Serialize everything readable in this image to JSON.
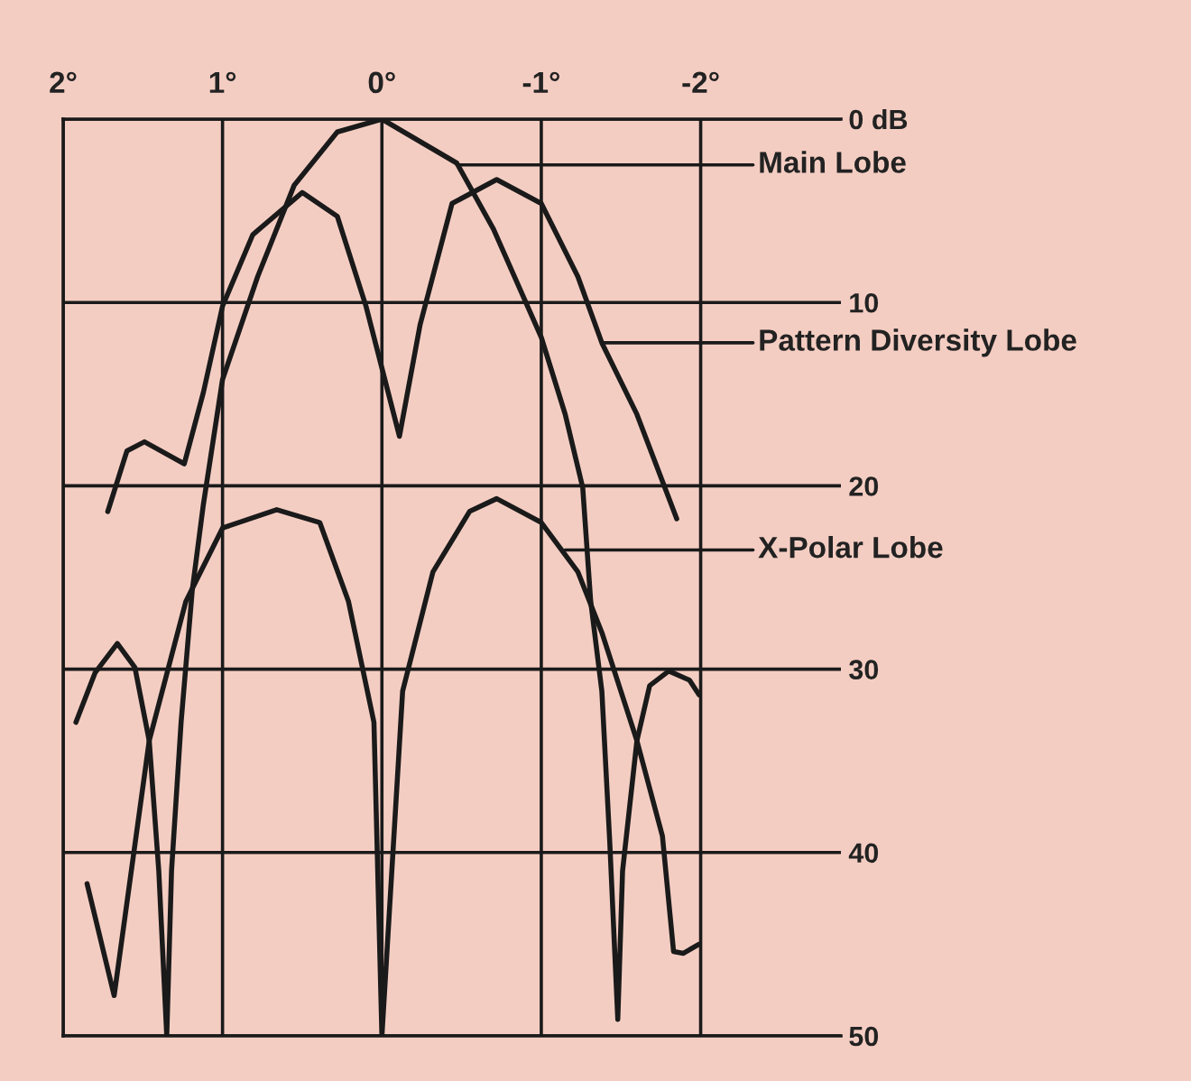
{
  "chart_data": {
    "type": "line",
    "xlim": [
      2,
      -2.88
    ],
    "xticks": [
      {
        "value": 2,
        "label": "2°"
      },
      {
        "value": 1,
        "label": "1°"
      },
      {
        "value": 0,
        "label": "0°"
      },
      {
        "value": -1,
        "label": "-1°"
      },
      {
        "value": -2,
        "label": "-2°"
      }
    ],
    "ylim": [
      50,
      0
    ],
    "yticks": [
      {
        "value": 0,
        "label": "0 dB"
      },
      10,
      20,
      30,
      40,
      50
    ],
    "grid": true,
    "line_style": "solid",
    "series": [
      {
        "color": "#1a1a1a",
        "x": [
          1.92,
          1.8,
          1.66,
          1.55,
          1.46,
          1.4,
          1.35,
          1.32,
          1.26,
          1.19,
          1.12,
          1.0,
          0.78,
          0.55,
          0.28,
          0,
          -0.47,
          -0.7,
          -1.0,
          -1.15,
          -1.26,
          -1.31,
          -1.38,
          -1.43,
          -1.48,
          -1.51,
          -1.6,
          -1.68,
          -1.8,
          -1.93,
          -1.99
        ],
        "values": [
          32.9,
          30.2,
          28.6,
          29.9,
          33.9,
          41,
          50,
          41,
          32.9,
          25.7,
          21,
          14.2,
          8.6,
          3.6,
          0.7,
          0,
          2.4,
          6,
          11.9,
          16.1,
          20.1,
          26.3,
          31.2,
          39.5,
          49.1,
          41,
          33.9,
          30.9,
          30.1,
          30.6,
          31.4
        ]
      },
      {
        "color": "#1a1a1a",
        "x": [
          1.72,
          1.6,
          1.49,
          1.24,
          1.12,
          1.0,
          0.81,
          0.5,
          0.28,
          0.1,
          -0.11,
          -0.24,
          -0.44,
          -0.72,
          -1.0,
          -1.23,
          -1.38,
          -1.6,
          -1.85
        ],
        "values": [
          21.4,
          18.1,
          17.6,
          18.8,
          14.9,
          10.2,
          6.3,
          4.0,
          5.3,
          10.2,
          17.3,
          11.2,
          4.6,
          3.3,
          4.6,
          8.6,
          12.2,
          16.1,
          21.8
        ]
      },
      {
        "color": "#1a1a1a",
        "x": [
          1.85,
          1.68,
          1.46,
          1.23,
          1.0,
          0.66,
          0.39,
          0.21,
          0.05,
          0,
          -0.13,
          -0.32,
          -0.55,
          -0.72,
          -1.0,
          -1.23,
          -1.38,
          -1.6,
          -1.76,
          -1.83,
          -1.89,
          -1.99
        ],
        "values": [
          41.7,
          47.8,
          33.9,
          26.3,
          22.3,
          21.3,
          22,
          26.3,
          32.9,
          50,
          31.2,
          24.7,
          21.4,
          20.7,
          22,
          24.7,
          28,
          33.9,
          39.1,
          45.4,
          45.5,
          45
        ]
      }
    ],
    "annotations": [
      {
        "text": "Main Lobe",
        "x": -0.47,
        "y": 2.5
      },
      {
        "text": "Pattern Diversity Lobe",
        "x": -1.38,
        "y": 12.2
      },
      {
        "text": "X-Polar Lobe",
        "x": -1.15,
        "y": 23.5
      }
    ]
  }
}
